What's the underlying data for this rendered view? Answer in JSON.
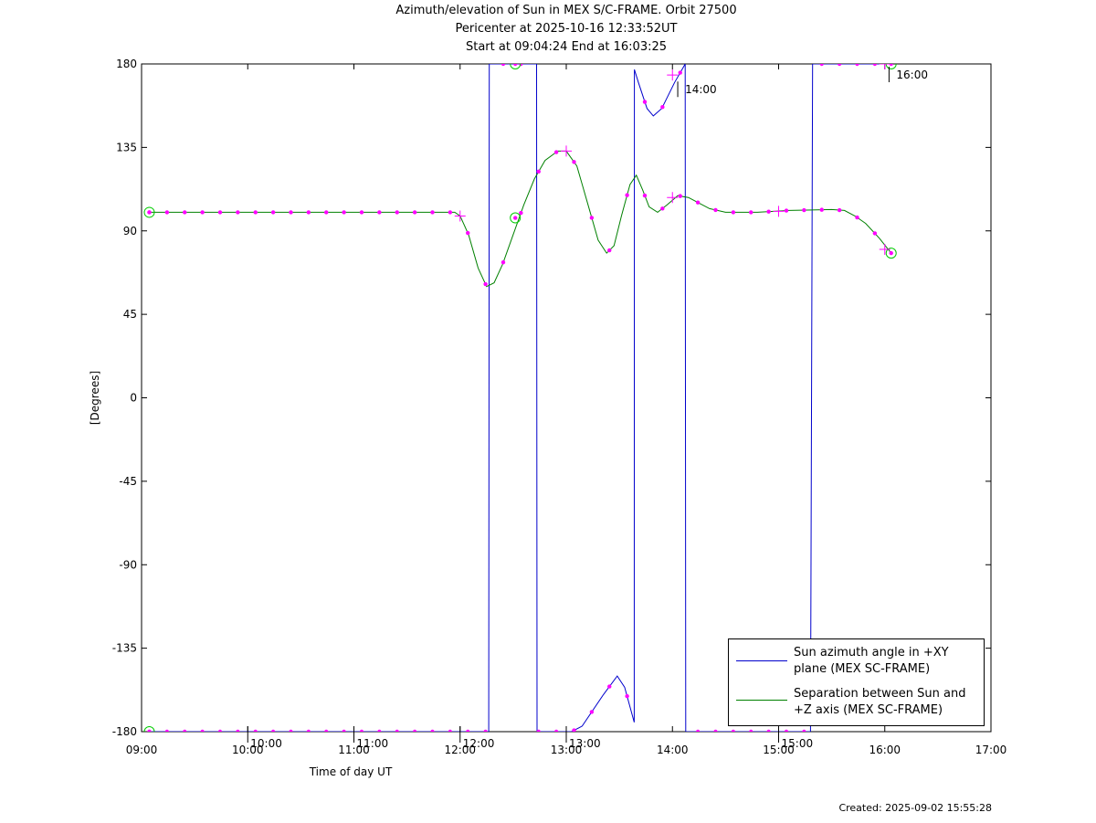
{
  "title_lines": [
    "Azimuth/elevation of Sun in MEX S/C-FRAME.  Orbit 27500",
    "Pericenter at 2025-10-16 12:33:52UT",
    "Start at 09:04:24 End at 16:03:25"
  ],
  "created": "Created: 2025-09-02 15:55:28",
  "chart_data": {
    "type": "line",
    "xlabel": "Time of day UT",
    "ylabel": "[Degrees]",
    "xlim": [
      9.0,
      17.0
    ],
    "ylim": [
      -180,
      180
    ],
    "x_ticks": [
      {
        "value": 9,
        "label": "09:00"
      },
      {
        "value": 10,
        "label": "10:00"
      },
      {
        "value": 11,
        "label": "11:00"
      },
      {
        "value": 12,
        "label": "12:00"
      },
      {
        "value": 13,
        "label": "13:00"
      },
      {
        "value": 14,
        "label": "14:00"
      },
      {
        "value": 15,
        "label": "15:00"
      },
      {
        "value": 16,
        "label": "16:00"
      },
      {
        "value": 17,
        "label": "17:00"
      }
    ],
    "y_ticks": [
      180,
      135,
      90,
      45,
      0,
      -45,
      -90,
      -135,
      -180
    ],
    "grid": false,
    "legend_position": "bottom-right",
    "series": [
      {
        "name": "Sun azimuth angle in +XY plane (MEX SC-FRAME)",
        "color": "#0000cc",
        "points": [
          [
            9.073,
            -180
          ],
          [
            12.27,
            -180
          ],
          [
            12.275,
            180
          ],
          [
            12.72,
            180
          ],
          [
            12.725,
            -180
          ],
          [
            13.05,
            -180
          ],
          [
            13.15,
            -177
          ],
          [
            13.35,
            -160
          ],
          [
            13.48,
            -150
          ],
          [
            13.55,
            -156
          ],
          [
            13.64,
            -175
          ],
          [
            13.642,
            177
          ],
          [
            13.68,
            170
          ],
          [
            13.76,
            156
          ],
          [
            13.82,
            152
          ],
          [
            13.9,
            156
          ],
          [
            14.02,
            170
          ],
          [
            14.1,
            178
          ],
          [
            14.12,
            180
          ],
          [
            14.125,
            -180
          ],
          [
            15.3,
            -180
          ],
          [
            15.32,
            180
          ],
          [
            16.06,
            180
          ]
        ]
      },
      {
        "name": "Separation between Sun and +Z axis (MEX SC-FRAME)",
        "color": "#008000",
        "points": [
          [
            9.073,
            100
          ],
          [
            11.95,
            100
          ],
          [
            12.0,
            98
          ],
          [
            12.08,
            88
          ],
          [
            12.17,
            70
          ],
          [
            12.25,
            60
          ],
          [
            12.32,
            62
          ],
          [
            12.4,
            72
          ],
          [
            12.5,
            88
          ],
          [
            12.6,
            104
          ],
          [
            12.7,
            118
          ],
          [
            12.8,
            128
          ],
          [
            12.92,
            133
          ],
          [
            13.0,
            133
          ],
          [
            13.1,
            125
          ],
          [
            13.2,
            105
          ],
          [
            13.3,
            85
          ],
          [
            13.38,
            78
          ],
          [
            13.45,
            82
          ],
          [
            13.52,
            98
          ],
          [
            13.6,
            115
          ],
          [
            13.66,
            120
          ],
          [
            13.72,
            112
          ],
          [
            13.78,
            103
          ],
          [
            13.86,
            100
          ],
          [
            13.95,
            104
          ],
          [
            14.05,
            109
          ],
          [
            14.15,
            108
          ],
          [
            14.25,
            105
          ],
          [
            14.35,
            102
          ],
          [
            14.5,
            100
          ],
          [
            14.8,
            100
          ],
          [
            15.1,
            101
          ],
          [
            15.5,
            101.5
          ],
          [
            15.62,
            101
          ],
          [
            15.72,
            98
          ],
          [
            15.82,
            94
          ],
          [
            15.95,
            86
          ],
          [
            16.06,
            78
          ]
        ]
      }
    ],
    "markers": [
      {
        "series": 1,
        "x": 9.073,
        "y": 100,
        "shape": "circle"
      },
      {
        "series": 1,
        "x": 12.52,
        "y": 97,
        "shape": "circle"
      },
      {
        "series": 1,
        "x": 16.06,
        "y": 78,
        "shape": "circle"
      },
      {
        "series": 0,
        "x": 9.073,
        "y": -180,
        "shape": "circle"
      },
      {
        "series": 0,
        "x": 12.52,
        "y": 180,
        "shape": "circle"
      },
      {
        "series": 0,
        "x": 16.06,
        "y": 180,
        "shape": "circle"
      },
      {
        "series": 1,
        "x": 12.0,
        "y": 98,
        "shape": "plus"
      },
      {
        "series": 1,
        "x": 13.0,
        "y": 133,
        "shape": "plus"
      },
      {
        "series": 1,
        "x": 14.0,
        "y": 108,
        "shape": "plus"
      },
      {
        "series": 1,
        "x": 15.0,
        "y": 100.5,
        "shape": "plus"
      },
      {
        "series": 1,
        "x": 16.0,
        "y": 80,
        "shape": "plus"
      },
      {
        "series": 0,
        "x": 14.0,
        "y": 174,
        "shape": "plus"
      },
      {
        "series": 0,
        "x": 16.0,
        "y": 180,
        "shape": "plus"
      }
    ],
    "annotations": [
      {
        "x": 10.0,
        "y": -180,
        "label": "10:00",
        "where": "below"
      },
      {
        "x": 11.0,
        "y": -180,
        "label": "11:00",
        "where": "below"
      },
      {
        "x": 12.0,
        "y": -180,
        "label": "12:00",
        "where": "below"
      },
      {
        "x": 13.0,
        "y": -180,
        "label": "13:00",
        "where": "below"
      },
      {
        "x": 15.0,
        "y": -180,
        "label": "15:00",
        "where": "below"
      },
      {
        "x": 14.05,
        "y": 172,
        "label": "14:00",
        "where": "below-right"
      },
      {
        "x": 16.04,
        "y": 180,
        "label": "16:00",
        "where": "below-right"
      }
    ]
  }
}
